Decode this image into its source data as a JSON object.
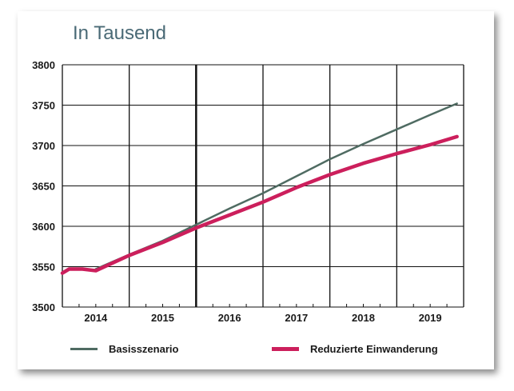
{
  "subtitle": "In Tausend",
  "chart_data": {
    "type": "line",
    "ylim": [
      3500,
      3800
    ],
    "yticks": [
      3500,
      3550,
      3600,
      3650,
      3700,
      3750,
      3800
    ],
    "x_range": [
      2013.5,
      2019.5
    ],
    "categories": [
      "2014",
      "2015",
      "2016",
      "2017",
      "2018",
      "2019"
    ],
    "grid": true,
    "legend_position": "bottom",
    "series": [
      {
        "name": "Basisszenario",
        "color": "#4f6b62",
        "x": [
          2014.0,
          2014.5,
          2015.0,
          2015.5,
          2016.0,
          2016.5,
          2017.0,
          2017.5,
          2018.0,
          2018.5,
          2019.0,
          2019.4
        ],
        "values": [
          3547,
          3565,
          3582,
          3602,
          3622,
          3641,
          3662,
          3683,
          3702,
          3720,
          3738,
          3752
        ]
      },
      {
        "name": "Reduzierte Einwanderung",
        "color": "#cc1f5c",
        "x": [
          2013.5,
          2013.6,
          2013.8,
          2014.0,
          2014.5,
          2015.0,
          2015.5,
          2016.0,
          2016.5,
          2017.0,
          2017.5,
          2018.0,
          2018.5,
          2019.0,
          2019.4
        ],
        "values": [
          3542,
          3547,
          3547,
          3545,
          3564,
          3580,
          3598,
          3614,
          3630,
          3648,
          3664,
          3678,
          3690,
          3701,
          3711
        ]
      }
    ]
  }
}
